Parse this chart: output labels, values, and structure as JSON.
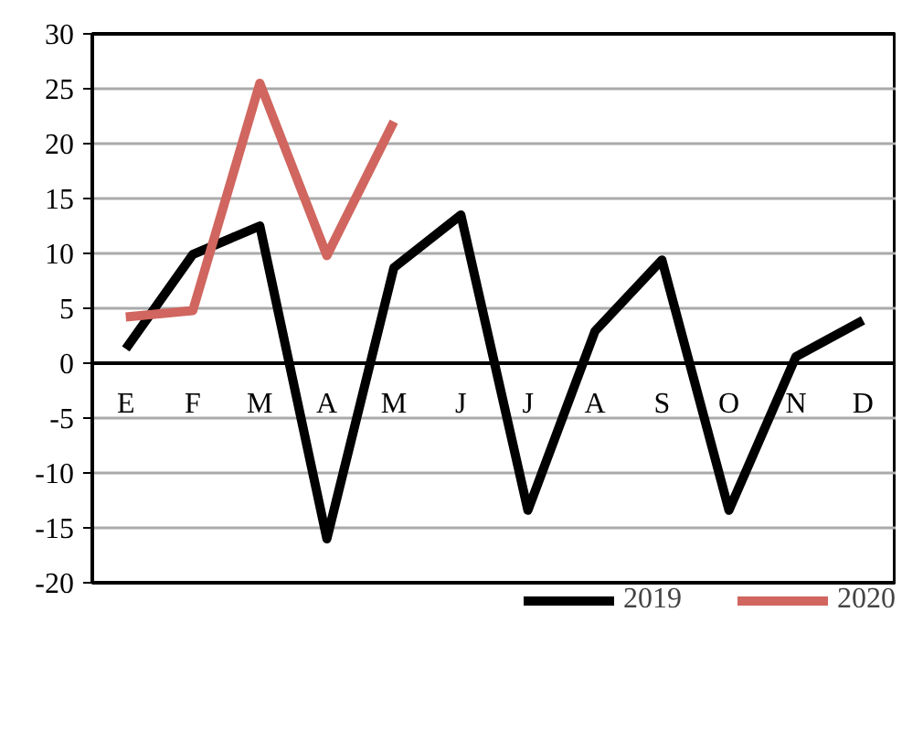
{
  "chart_data": {
    "type": "line",
    "categories": [
      "E",
      "F",
      "M",
      "A",
      "M",
      "J",
      "J",
      "A",
      "S",
      "O",
      "N",
      "D"
    ],
    "series": [
      {
        "name": "2019",
        "color": "#000000",
        "values": [
          1.3,
          9.9,
          12.5,
          -16,
          8.7,
          13.5,
          -13.4,
          2.9,
          9.4,
          -13.4,
          0.6,
          3.9
        ]
      },
      {
        "name": "2020",
        "color": "#d0665f",
        "values": [
          4.2,
          4.8,
          25.5,
          9.8,
          22,
          null,
          null,
          null,
          null,
          null,
          null,
          null
        ]
      }
    ],
    "ylim": [
      -20,
      30
    ],
    "yticks": [
      -20,
      -15,
      -10,
      -5,
      0,
      5,
      10,
      15,
      20,
      25,
      30
    ],
    "grid": "y",
    "legend": "bottom",
    "marker": "none",
    "line_style": "solid"
  }
}
